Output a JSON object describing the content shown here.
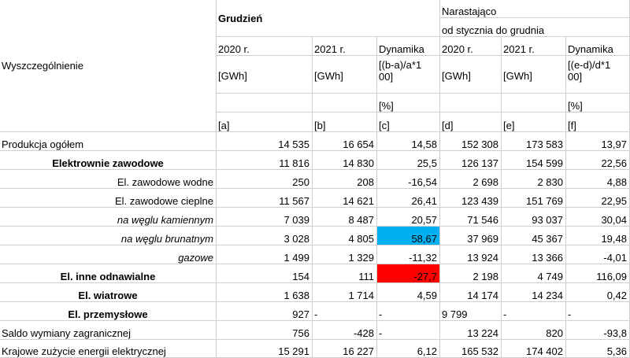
{
  "header": {
    "label_col": "Wyszczególnienie",
    "month_group": "Grudzień",
    "cumulative_line1": "Narastająco",
    "cumulative_line2": "od stycznia do grudnia",
    "col_2020": "2020 r.",
    "col_2021": "2021 r.",
    "col_dyn": "Dynamika",
    "unit_gwh": "[GWh]",
    "formula_c": "[(b-a)/a*100]",
    "formula_f": "[(e-d)/d*100]",
    "unit_pct": "[%]",
    "letters": [
      "[a]",
      "[b]",
      "[c]",
      "[d]",
      "[e]",
      "[f]"
    ]
  },
  "rows": [
    {
      "label": "Produkcja ogółem",
      "a": "14 535",
      "b": "16 654",
      "c": "14,58",
      "d": "152 308",
      "e": "173 583",
      "f": "13,97"
    },
    {
      "label": "Elektrownie zawodowe",
      "a": "11 816",
      "b": "14 830",
      "c": "25,5",
      "d": "126 137",
      "e": "154 599",
      "f": "22,56"
    },
    {
      "label": "El. zawodowe wodne",
      "a": "250",
      "b": "208",
      "c": "-16,54",
      "d": "2 698",
      "e": "2 830",
      "f": "4,88"
    },
    {
      "label": "El. zawodowe cieplne",
      "a": "11 567",
      "b": "14 621",
      "c": "26,41",
      "d": "123 439",
      "e": "151 769",
      "f": "22,95"
    },
    {
      "label": "na węglu kamiennym",
      "a": "7 039",
      "b": "8 487",
      "c": "20,57",
      "d": "71 546",
      "e": "93 037",
      "f": "30,04"
    },
    {
      "label": "na węglu brunatnym",
      "a": "3 028",
      "b": "4 805",
      "c": "58,67",
      "d": "37 969",
      "e": "45 367",
      "f": "19,48"
    },
    {
      "label": "gazowe",
      "a": "1 499",
      "b": "1 329",
      "c": "-11,32",
      "d": "13 924",
      "e": "13 366",
      "f": "-4,01"
    },
    {
      "label": "El. inne odnawialne",
      "a": "154",
      "b": "111",
      "c": "-27,7",
      "d": "2 198",
      "e": "4 749",
      "f": "116,09"
    },
    {
      "label": "El. wiatrowe",
      "a": "1 638",
      "b": "1 714",
      "c": "4,59",
      "d": "14 174",
      "e": "14 234",
      "f": "0,42"
    },
    {
      "label": "El. przemysłowe",
      "a": "927",
      "b": "-",
      "c": "-",
      "d": "9 799",
      "e": "-",
      "f": "-"
    },
    {
      "label": "Saldo wymiany zagranicznej",
      "a": "756",
      "b": "-428",
      "c": "-",
      "d": "13 224",
      "e": "820",
      "f": "-93,8"
    },
    {
      "label": "Krajowe zużycie energii elektrycznej",
      "a": "15 291",
      "b": "16 227",
      "c": "6,12",
      "d": "165 532",
      "e": "174 402",
      "f": "5,36"
    }
  ],
  "highlight_colors": {
    "positive": "#00b0f0",
    "negative": "#ff0000"
  }
}
